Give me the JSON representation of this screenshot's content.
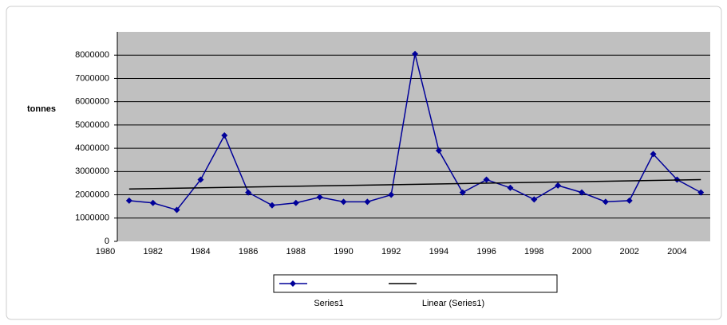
{
  "chart_data": {
    "type": "line",
    "y_label": "tonnes",
    "x": [
      1981,
      1982,
      1983,
      1984,
      1985,
      1986,
      1987,
      1988,
      1989,
      1990,
      1991,
      1992,
      1993,
      1994,
      1995,
      1996,
      1997,
      1998,
      1999,
      2000,
      2001,
      2002,
      2003,
      2004,
      2005
    ],
    "series": [
      {
        "name": "Series1",
        "color": "#000099",
        "values": [
          1750000,
          1650000,
          1350000,
          2650000,
          4550000,
          2100000,
          1550000,
          1650000,
          1900000,
          1700000,
          1700000,
          2000000,
          8050000,
          3900000,
          2100000,
          2650000,
          2300000,
          1800000,
          2400000,
          2100000,
          1700000,
          1750000,
          3750000,
          2650000,
          2100000
        ]
      },
      {
        "name": "Linear (Series1)",
        "color": "#000000",
        "x": [
          1981,
          2005
        ],
        "values": [
          2250000,
          2650000
        ]
      }
    ],
    "xlim": [
      1980,
      2006
    ],
    "xticks": [
      1980,
      1982,
      1984,
      1986,
      1988,
      1990,
      1992,
      1994,
      1996,
      1998,
      2000,
      2002,
      2004
    ],
    "ylim": [
      0,
      9000000
    ],
    "yticks": [
      0,
      1000000,
      2000000,
      3000000,
      4000000,
      5000000,
      6000000,
      7000000,
      8000000
    ],
    "grid": true,
    "plot_background": "#c0c0c0"
  }
}
